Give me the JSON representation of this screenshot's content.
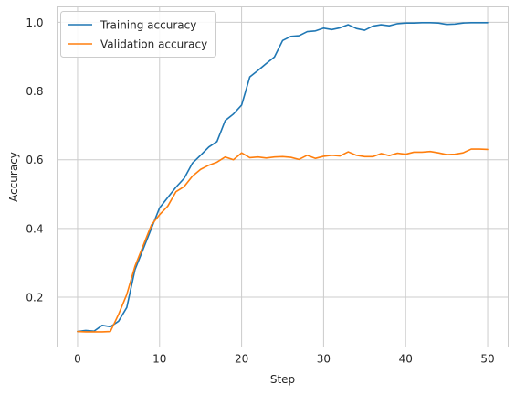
{
  "chart_data": {
    "type": "line",
    "title": "",
    "xlabel": "Step",
    "ylabel": "Accuracy",
    "xlim": [
      -2.5,
      52.5
    ],
    "ylim": [
      0.055,
      1.045
    ],
    "xticks": [
      0,
      10,
      20,
      30,
      40,
      50
    ],
    "yticks": [
      0.2,
      0.4,
      0.6,
      0.8,
      1.0
    ],
    "xtick_labels": [
      "0",
      "10",
      "20",
      "30",
      "40",
      "50"
    ],
    "ytick_labels": [
      "0.2",
      "0.4",
      "0.6",
      "0.8",
      "1.0"
    ],
    "grid": true,
    "legend_position": "top-left",
    "x": [
      0,
      1,
      2,
      3,
      4,
      5,
      6,
      7,
      8,
      9,
      10,
      11,
      12,
      13,
      14,
      15,
      16,
      17,
      18,
      19,
      20,
      21,
      22,
      23,
      24,
      25,
      26,
      27,
      28,
      29,
      30,
      31,
      32,
      33,
      34,
      35,
      36,
      37,
      38,
      39,
      40,
      41,
      42,
      43,
      44,
      45,
      46,
      47,
      48,
      49,
      50
    ],
    "series": [
      {
        "name": "Training accuracy",
        "color": "#1f77b4",
        "values": [
          0.1,
          0.103,
          0.101,
          0.118,
          0.114,
          0.13,
          0.17,
          0.28,
          0.34,
          0.4,
          0.46,
          0.49,
          0.52,
          0.546,
          0.59,
          0.613,
          0.637,
          0.653,
          0.714,
          0.733,
          0.759,
          0.841,
          0.86,
          0.88,
          0.899,
          0.947,
          0.959,
          0.961,
          0.973,
          0.975,
          0.983,
          0.979,
          0.984,
          0.993,
          0.982,
          0.977,
          0.989,
          0.993,
          0.99,
          0.996,
          0.998,
          0.998,
          0.999,
          0.999,
          0.998,
          0.994,
          0.995,
          0.998,
          0.999,
          0.999,
          0.999
        ]
      },
      {
        "name": "Validation accuracy",
        "color": "#ff7f0e",
        "values": [
          0.1,
          0.099,
          0.099,
          0.099,
          0.1,
          0.15,
          0.208,
          0.29,
          0.35,
          0.41,
          0.44,
          0.465,
          0.507,
          0.522,
          0.552,
          0.572,
          0.584,
          0.593,
          0.608,
          0.6,
          0.62,
          0.606,
          0.608,
          0.605,
          0.608,
          0.609,
          0.607,
          0.601,
          0.613,
          0.604,
          0.61,
          0.613,
          0.611,
          0.623,
          0.613,
          0.609,
          0.609,
          0.618,
          0.612,
          0.619,
          0.616,
          0.622,
          0.622,
          0.624,
          0.62,
          0.615,
          0.616,
          0.62,
          0.631,
          0.631,
          0.63
        ]
      }
    ]
  }
}
